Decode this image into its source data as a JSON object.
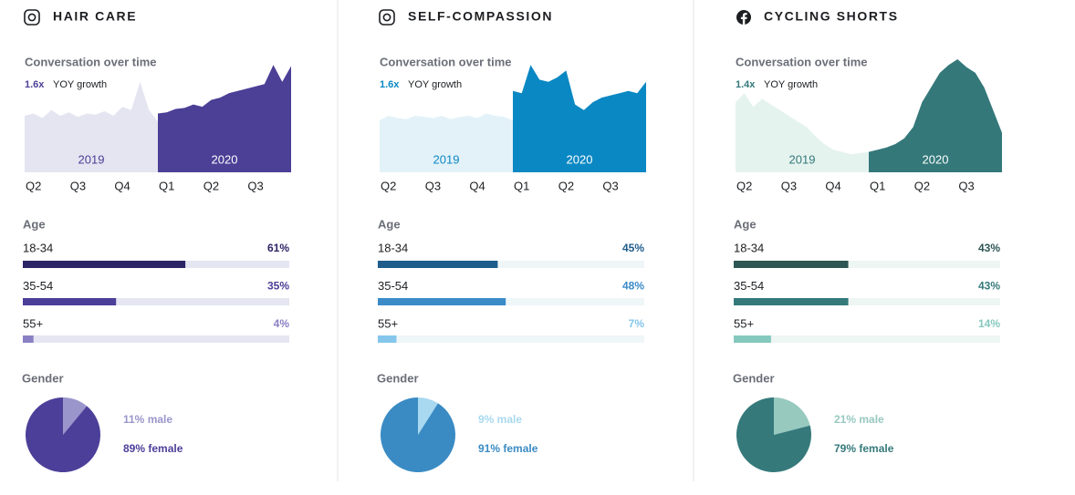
{
  "chart_data": [
    {
      "type": "area",
      "title": "HAIR CARE",
      "subtitle": "Conversation over time",
      "growth": "1.6x",
      "growth_label": "YOY growth",
      "x": [
        -0.2,
        0,
        0.2,
        0.4,
        0.6,
        0.8,
        1,
        1.2,
        1.4,
        1.6,
        1.8,
        2,
        2.2,
        2.4,
        2.6,
        2.8,
        3,
        3.2,
        3.4,
        3.6,
        3.8,
        4,
        4.2,
        4.4,
        4.6,
        4.8,
        5,
        5.2,
        5.4,
        5.6,
        5.8
      ],
      "xlim": [
        -0.2,
        5.8
      ],
      "ylim": [
        0,
        100
      ],
      "xticks": [
        {
          "value": 0,
          "label": "Q2"
        },
        {
          "value": 1,
          "label": "Q3"
        },
        {
          "value": 2,
          "label": "Q4"
        },
        {
          "value": 3,
          "label": "Q1"
        },
        {
          "value": 4,
          "label": "Q2"
        },
        {
          "value": 5,
          "label": "Q3"
        }
      ],
      "series": [
        {
          "name": "2019",
          "color": "#e4e5f1",
          "label_color": "#4b3f96",
          "values": [
            50,
            52,
            48,
            55,
            50,
            53,
            49,
            52,
            51,
            54,
            50,
            58,
            55,
            80,
            55,
            45,
            null,
            null,
            null,
            null,
            null,
            null,
            null,
            null,
            null,
            null,
            null,
            null,
            null,
            null,
            null
          ]
        },
        {
          "name": "2020",
          "color": "#4b3f96",
          "label_color": "#ffffff",
          "values": [
            null,
            null,
            null,
            null,
            null,
            null,
            null,
            null,
            null,
            null,
            null,
            null,
            null,
            null,
            null,
            52,
            53,
            56,
            57,
            60,
            58,
            64,
            66,
            70,
            72,
            74,
            76,
            78,
            95,
            80,
            94
          ]
        }
      ],
      "growth_color": "#4b3f96"
    },
    {
      "type": "bar",
      "title": "Age",
      "categories": [
        "18-34",
        "35-54",
        "55+"
      ],
      "values": [
        61,
        35,
        4
      ],
      "value_labels": [
        "61%",
        "35%",
        "4%"
      ],
      "colors": [
        "#2d2466",
        "#4c3f99",
        "#8a80c4"
      ],
      "track_color": "#e5e6f2",
      "xlim": [
        0,
        100
      ]
    },
    {
      "type": "pie",
      "title": "Gender",
      "values": [
        11,
        89
      ],
      "value_labels": [
        "11% male",
        "89% female"
      ],
      "colors": [
        "#9a96cc",
        "#4c3f99"
      ]
    },
    {
      "type": "area",
      "title": "SELF-COMPASSION",
      "subtitle": "Conversation over time",
      "growth": "1.6x",
      "growth_label": "YOY growth",
      "x": [
        -0.2,
        0,
        0.2,
        0.4,
        0.6,
        0.8,
        1,
        1.2,
        1.4,
        1.6,
        1.8,
        2,
        2.2,
        2.4,
        2.6,
        2.8,
        3,
        3.2,
        3.4,
        3.6,
        3.8,
        4,
        4.2,
        4.4,
        4.6,
        4.8,
        5,
        5.2,
        5.4,
        5.6,
        5.8
      ],
      "xlim": [
        -0.2,
        5.8
      ],
      "ylim": [
        0,
        100
      ],
      "xticks": [
        {
          "value": 0,
          "label": "Q2"
        },
        {
          "value": 1,
          "label": "Q3"
        },
        {
          "value": 2,
          "label": "Q4"
        },
        {
          "value": 3,
          "label": "Q1"
        },
        {
          "value": 4,
          "label": "Q2"
        },
        {
          "value": 5,
          "label": "Q3"
        }
      ],
      "series": [
        {
          "name": "2019",
          "color": "#e3f2f8",
          "label_color": "#0a88c3",
          "values": [
            46,
            50,
            48,
            47,
            50,
            49,
            48,
            50,
            47,
            49,
            50,
            48,
            52,
            50,
            49,
            46,
            null,
            null,
            null,
            null,
            null,
            null,
            null,
            null,
            null,
            null,
            null,
            null,
            null,
            null,
            null
          ]
        },
        {
          "name": "2020",
          "color": "#0a88c3",
          "label_color": "#ffffff",
          "values": [
            null,
            null,
            null,
            null,
            null,
            null,
            null,
            null,
            null,
            null,
            null,
            null,
            null,
            null,
            null,
            72,
            70,
            95,
            82,
            80,
            84,
            90,
            60,
            55,
            62,
            66,
            68,
            70,
            72,
            70,
            80
          ]
        }
      ],
      "growth_color": "#0a88c3"
    },
    {
      "type": "bar",
      "title": "Age",
      "categories": [
        "18-34",
        "35-54",
        "55+"
      ],
      "values": [
        45,
        48,
        7
      ],
      "value_labels": [
        "45%",
        "48%",
        "7%"
      ],
      "colors": [
        "#1f5c8b",
        "#3b8bc8",
        "#84c6ec"
      ],
      "track_color": "#eef6f8",
      "xlim": [
        0,
        100
      ]
    },
    {
      "type": "pie",
      "title": "Gender",
      "values": [
        9,
        91
      ],
      "value_labels": [
        "9% male",
        "91% female"
      ],
      "colors": [
        "#a8d9f0",
        "#3a8bc4"
      ]
    },
    {
      "type": "area",
      "title": "CYCLING SHORTS",
      "subtitle": "Conversation over time",
      "growth": "1.4x",
      "growth_label": "YOY growth",
      "x": [
        -0.2,
        0,
        0.2,
        0.4,
        0.6,
        0.8,
        1,
        1.2,
        1.4,
        1.6,
        1.8,
        2,
        2.2,
        2.4,
        2.6,
        2.8,
        3,
        3.2,
        3.4,
        3.6,
        3.8,
        4,
        4.2,
        4.4,
        4.6,
        4.8,
        5,
        5.2,
        5.4,
        5.6,
        5.8
      ],
      "xlim": [
        -0.2,
        5.8
      ],
      "ylim": [
        0,
        100
      ],
      "xticks": [
        {
          "value": 0,
          "label": "Q2"
        },
        {
          "value": 1,
          "label": "Q3"
        },
        {
          "value": 2,
          "label": "Q4"
        },
        {
          "value": 3,
          "label": "Q1"
        },
        {
          "value": 4,
          "label": "Q2"
        },
        {
          "value": 5,
          "label": "Q3"
        }
      ],
      "series": [
        {
          "name": "2019",
          "color": "#e5f3ef",
          "label_color": "#34787a",
          "values": [
            62,
            70,
            58,
            65,
            60,
            55,
            50,
            45,
            40,
            32,
            25,
            20,
            18,
            16,
            17,
            18,
            null,
            null,
            null,
            null,
            null,
            null,
            null,
            null,
            null,
            null,
            null,
            null,
            null,
            null,
            null
          ]
        },
        {
          "name": "2020",
          "color": "#34787a",
          "label_color": "#ffffff",
          "values": [
            null,
            null,
            null,
            null,
            null,
            null,
            null,
            null,
            null,
            null,
            null,
            null,
            null,
            null,
            null,
            18,
            20,
            22,
            25,
            30,
            40,
            62,
            75,
            88,
            95,
            100,
            93,
            88,
            75,
            55,
            35
          ]
        }
      ],
      "growth_color": "#34787a"
    },
    {
      "type": "bar",
      "title": "Age",
      "categories": [
        "18-34",
        "35-54",
        "55+"
      ],
      "values": [
        43,
        43,
        14
      ],
      "value_labels": [
        "43%",
        "43%",
        "14%"
      ],
      "colors": [
        "#2d5654",
        "#35797b",
        "#85c8be"
      ],
      "track_color": "#eef6f4",
      "xlim": [
        0,
        100
      ]
    },
    {
      "type": "pie",
      "title": "Gender",
      "values": [
        21,
        79
      ],
      "value_labels": [
        "21% male",
        "79% female"
      ],
      "colors": [
        "#97c9bf",
        "#35797b"
      ]
    }
  ]
}
